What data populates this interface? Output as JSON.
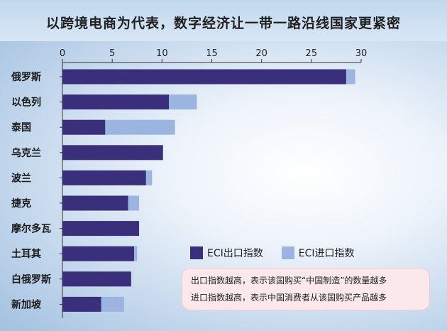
{
  "title": "以跨境电商为代表，数字经济让一带一路沿线国家更紧密",
  "legend": {
    "export_label": "ECI出口指数",
    "import_label": "ECI进口指数"
  },
  "note": {
    "line1": "出口指数越高，表示该国购买“中国制造”的数量越多",
    "line2": "进口指数越高，表示中国消费者从该国购买产品越多"
  },
  "colors": {
    "export": "#3a2f7a",
    "import": "#9bb5e0"
  },
  "chart_data": {
    "type": "bar",
    "orientation": "horizontal",
    "stacked": true,
    "categories": [
      "俄罗斯",
      "以色列",
      "泰国",
      "乌克兰",
      "波兰",
      "捷克",
      "摩尔多瓦",
      "土耳其",
      "白俄罗斯",
      "新加坡"
    ],
    "series": [
      {
        "name": "ECI出口指数",
        "values": [
          28.5,
          10.7,
          4.3,
          10.1,
          8.4,
          6.6,
          7.7,
          7.2,
          6.9,
          3.9
        ]
      },
      {
        "name": "ECI进口指数",
        "values": [
          0.9,
          2.8,
          7.0,
          0,
          0.6,
          1.1,
          0,
          0.3,
          0,
          2.3
        ]
      }
    ],
    "xlim": [
      0,
      30
    ],
    "xticks": [
      0,
      5,
      10,
      15,
      20,
      25,
      30
    ],
    "tick_position": "top",
    "legend_position": "bottom-right",
    "grid": false
  }
}
